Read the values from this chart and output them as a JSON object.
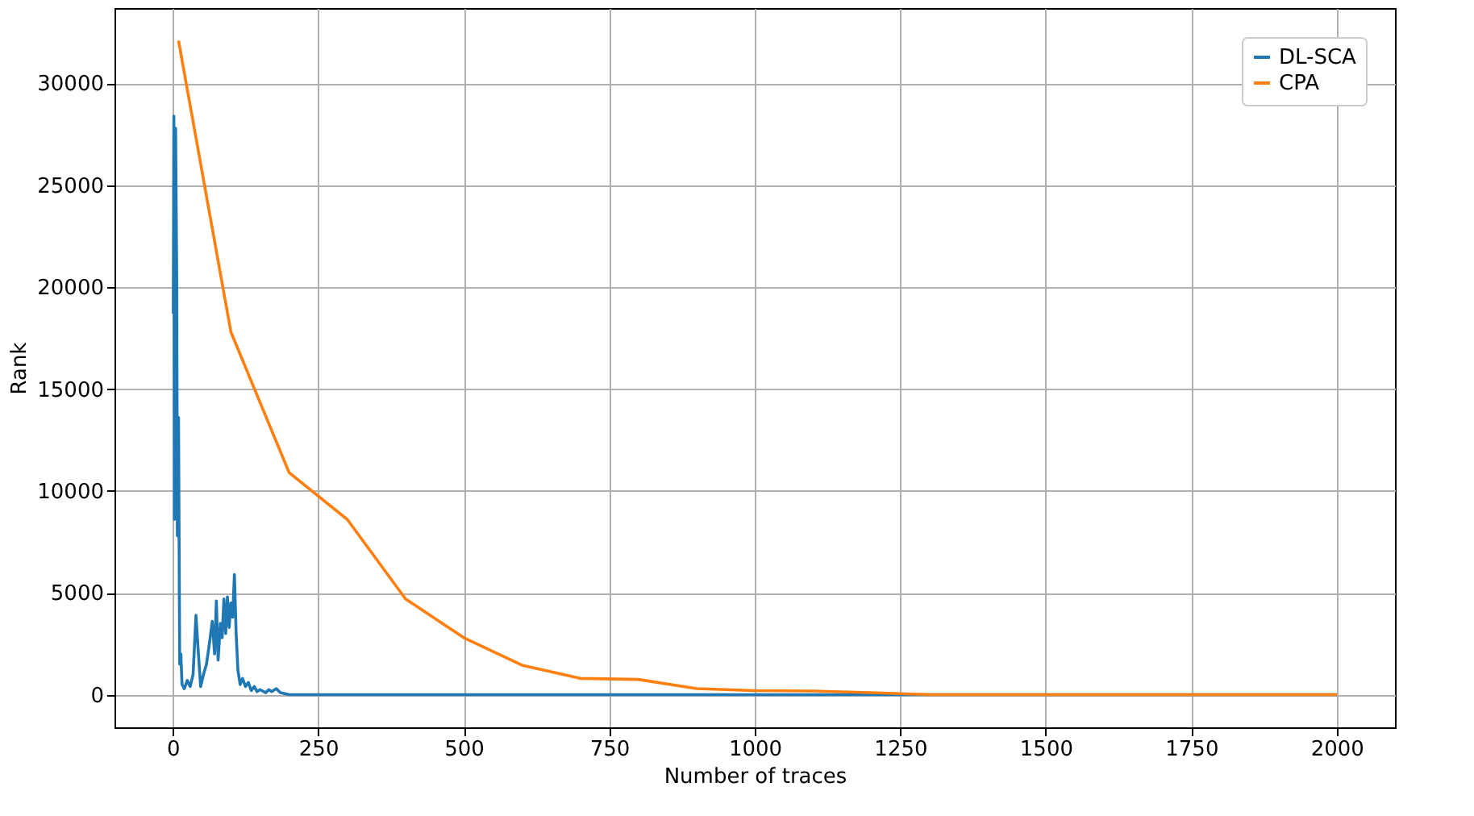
{
  "chart_data": {
    "type": "line",
    "xlabel": "Number of traces",
    "ylabel": "Rank",
    "xlim": [
      -100,
      2100
    ],
    "ylim": [
      -1600,
      33700
    ],
    "xticks": [
      0,
      250,
      500,
      750,
      1000,
      1250,
      1500,
      1750,
      2000
    ],
    "yticks": [
      0,
      5000,
      10000,
      15000,
      20000,
      25000,
      30000
    ],
    "grid": true,
    "legend": "top right",
    "series": [
      {
        "name": "DL-SCA",
        "color": "#1f77b4",
        "x": [
          1,
          2,
          3,
          5,
          7,
          8,
          10,
          12,
          14,
          16,
          20,
          25,
          30,
          35,
          40,
          43,
          48,
          53,
          58,
          63,
          68,
          72,
          75,
          78,
          82,
          85,
          88,
          91,
          94,
          97,
          100,
          103,
          106,
          109,
          112,
          116,
          120,
          125,
          130,
          135,
          140,
          145,
          150,
          160,
          165,
          170,
          178,
          185,
          200,
          250,
          300,
          500,
          1000,
          2000
        ],
        "values": [
          18700,
          28400,
          8600,
          27800,
          20000,
          7800,
          13600,
          1500,
          2000,
          500,
          300,
          700,
          400,
          1000,
          3900,
          2500,
          400,
          1000,
          1500,
          2500,
          3600,
          2000,
          4600,
          1700,
          3500,
          2800,
          4700,
          3000,
          4800,
          3300,
          4500,
          3800,
          5900,
          3000,
          1200,
          500,
          800,
          400,
          600,
          200,
          400,
          150,
          250,
          100,
          250,
          150,
          300,
          100,
          0,
          0,
          0,
          0,
          0,
          0
        ]
      },
      {
        "name": "CPA",
        "color": "#ff7f0e",
        "x": [
          10,
          100,
          200,
          300,
          400,
          500,
          600,
          700,
          800,
          900,
          1000,
          1100,
          1200,
          1300,
          1400,
          1500,
          1600,
          1700,
          1800,
          1900,
          2000
        ],
        "values": [
          32100,
          17800,
          10900,
          8600,
          4700,
          2800,
          1450,
          800,
          750,
          300,
          200,
          180,
          100,
          0,
          0,
          0,
          0,
          0,
          0,
          0,
          0
        ]
      }
    ]
  }
}
